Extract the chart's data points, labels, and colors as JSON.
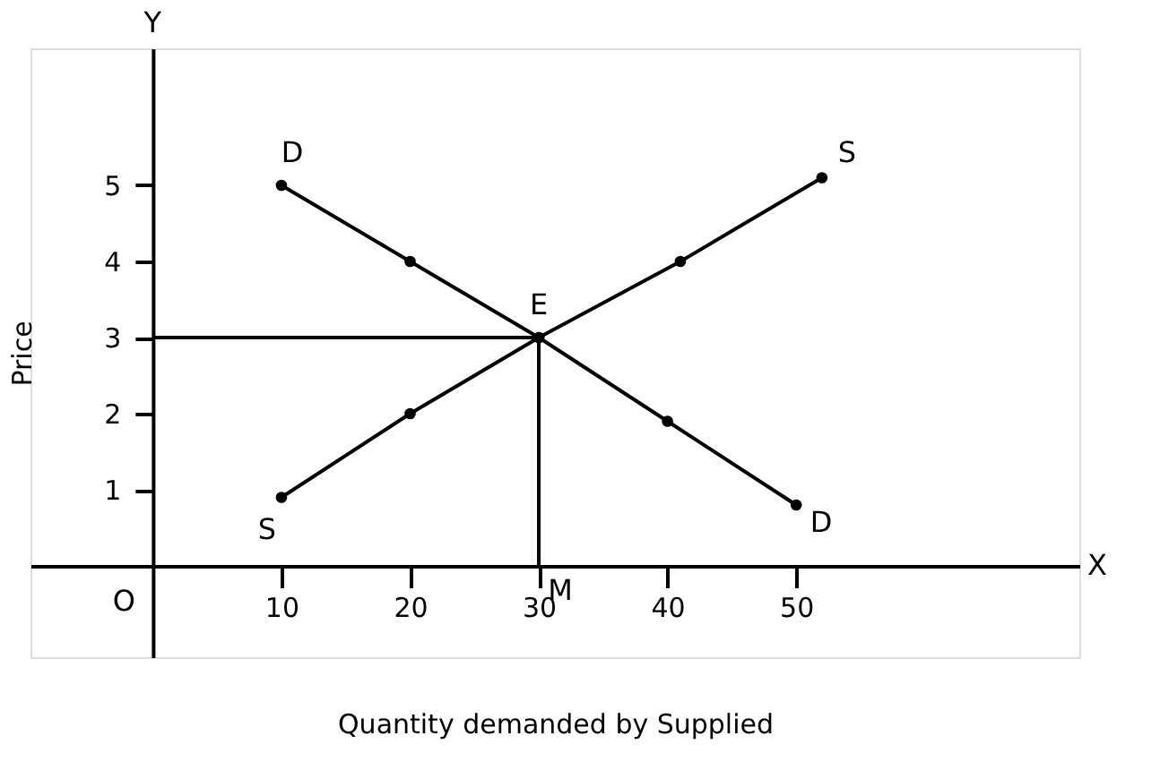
{
  "chart_data": {
    "type": "line",
    "xlabel": "Quantity demanded by Supplied",
    "ylabel": "Price",
    "xlim": [
      -9.5,
      72
    ],
    "ylim": [
      -1.2,
      6.8
    ],
    "xticks": [
      10,
      20,
      30,
      40,
      50
    ],
    "yticks": [
      1,
      2,
      3,
      4,
      5
    ],
    "grid": false,
    "marker": "circle",
    "series": [
      {
        "color": "#000000",
        "x": [
          10,
          20,
          30,
          40,
          50
        ],
        "values": [
          5,
          4,
          3,
          1.9,
          0.8
        ]
      },
      {
        "color": "#000000",
        "x": [
          10,
          20,
          30,
          41,
          52
        ],
        "values": [
          0.9,
          2,
          3,
          4,
          5.1
        ]
      },
      {
        "color": "#000000",
        "x": [
          0,
          30,
          30
        ],
        "values": [
          3,
          3,
          0
        ],
        "marker": "none"
      }
    ],
    "annotations": [
      {
        "text": "D",
        "x": 10,
        "y": 5
      },
      {
        "text": "D",
        "x": 50,
        "y": 0.8
      },
      {
        "text": "S",
        "x": 52,
        "y": 5.1
      },
      {
        "text": "S",
        "x": 10,
        "y": 0.9
      },
      {
        "text": "E",
        "x": 30,
        "y": 3
      },
      {
        "text": "M",
        "x": 30,
        "y": 0
      },
      "O",
      "X",
      "Y"
    ]
  }
}
